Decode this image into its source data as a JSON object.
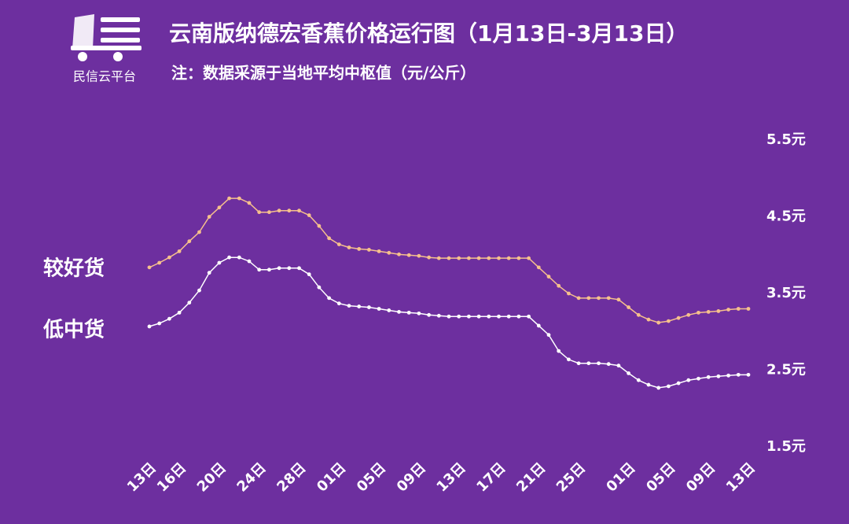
{
  "logo": {
    "text": "民信云平台"
  },
  "chart_data": {
    "type": "line",
    "title": "云南版纳德宏香蕉价格运行图（1月13日-3月13日）",
    "subtitle": "注：数据采源于当地平均中枢值（元/公斤）",
    "categories": [
      "13日",
      null,
      null,
      "16日",
      null,
      null,
      null,
      "20日",
      null,
      null,
      null,
      "24日",
      null,
      null,
      null,
      "28日",
      null,
      null,
      null,
      "01日",
      null,
      null,
      null,
      "05日",
      null,
      null,
      null,
      "09日",
      null,
      null,
      null,
      "13日",
      null,
      null,
      null,
      "17日",
      null,
      null,
      null,
      "21日",
      null,
      null,
      null,
      "25日",
      null,
      null,
      null,
      null,
      "01日",
      null,
      null,
      null,
      "05日",
      null,
      null,
      null,
      "09日",
      null,
      null,
      null,
      "13日"
    ],
    "series": [
      {
        "name": "较好货",
        "color": "#f6c08c",
        "values": [
          3.84,
          3.9,
          3.97,
          4.05,
          4.18,
          4.3,
          4.5,
          4.62,
          4.74,
          4.74,
          4.68,
          4.56,
          4.56,
          4.58,
          4.58,
          4.58,
          4.52,
          4.38,
          4.22,
          4.14,
          4.1,
          4.08,
          4.07,
          4.05,
          4.03,
          4.01,
          4.0,
          3.99,
          3.97,
          3.96,
          3.96,
          3.96,
          3.96,
          3.96,
          3.96,
          3.96,
          3.96,
          3.96,
          3.96,
          3.84,
          3.72,
          3.6,
          3.5,
          3.44,
          3.44,
          3.44,
          3.44,
          3.42,
          3.32,
          3.22,
          3.16,
          3.12,
          3.14,
          3.18,
          3.22,
          3.25,
          3.26,
          3.27,
          3.29,
          3.3,
          3.3
        ]
      },
      {
        "name": "低中货",
        "color": "#ffffff",
        "values": [
          3.07,
          3.11,
          3.17,
          3.25,
          3.38,
          3.54,
          3.77,
          3.9,
          3.97,
          3.97,
          3.92,
          3.81,
          3.81,
          3.83,
          3.83,
          3.83,
          3.75,
          3.58,
          3.44,
          3.37,
          3.34,
          3.33,
          3.32,
          3.3,
          3.28,
          3.26,
          3.25,
          3.24,
          3.22,
          3.21,
          3.2,
          3.2,
          3.2,
          3.2,
          3.2,
          3.2,
          3.2,
          3.2,
          3.2,
          3.08,
          2.96,
          2.75,
          2.64,
          2.59,
          2.59,
          2.59,
          2.58,
          2.56,
          2.46,
          2.37,
          2.31,
          2.27,
          2.29,
          2.33,
          2.37,
          2.39,
          2.41,
          2.42,
          2.43,
          2.44,
          2.44
        ]
      }
    ],
    "ylim": [
      1.5,
      5.5
    ],
    "yticks": [
      {
        "value": 1.5,
        "label": "1.5元"
      },
      {
        "value": 2.5,
        "label": "2.5元"
      },
      {
        "value": 3.5,
        "label": "3.5元"
      },
      {
        "value": 4.5,
        "label": "4.5元"
      },
      {
        "value": 5.5,
        "label": "5.5元"
      }
    ],
    "grid": false
  }
}
